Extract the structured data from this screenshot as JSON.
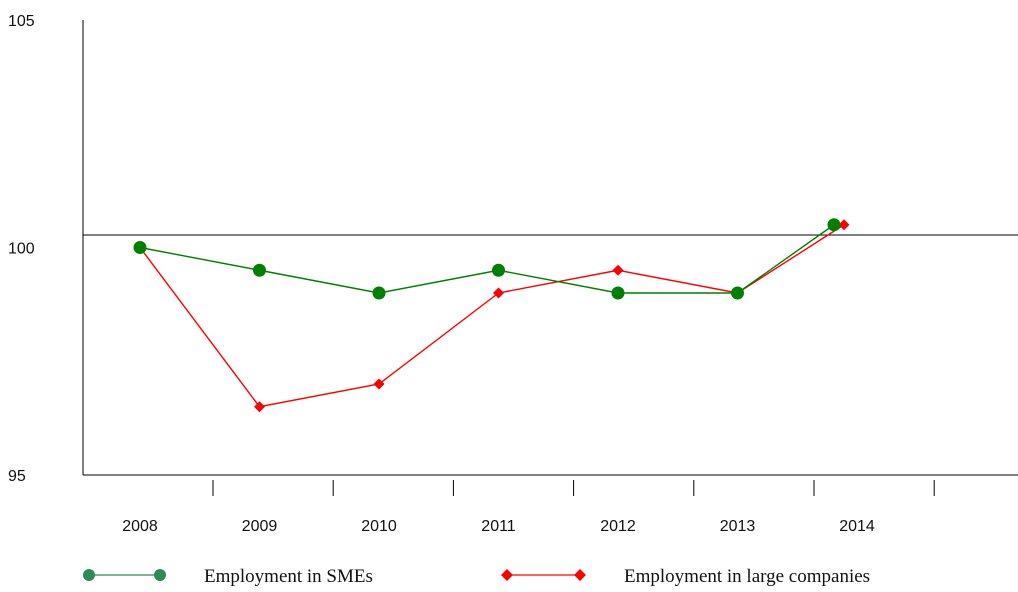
{
  "chart_data": {
    "type": "line",
    "categories": [
      "2008",
      "2009",
      "2010",
      "2011",
      "2012",
      "2013",
      "2014"
    ],
    "y_ticks": [
      "95",
      "100",
      "105"
    ],
    "ylim": [
      95,
      105
    ],
    "grid": false,
    "reference_line": 100,
    "legend_position": "bottom",
    "series": [
      {
        "name": "Employment in SMEs",
        "color": "#008000",
        "legend_color": "#2e8b57",
        "marker": "circle",
        "values": [
          100,
          99.5,
          99,
          99.5,
          99,
          99,
          100.5
        ]
      },
      {
        "name": "Employment in large companies",
        "color": "#ff0000",
        "legend_color": "#ff0000",
        "marker": "diamond",
        "values": [
          100,
          96.5,
          97,
          99,
          99.5,
          99,
          100.5
        ]
      }
    ]
  }
}
